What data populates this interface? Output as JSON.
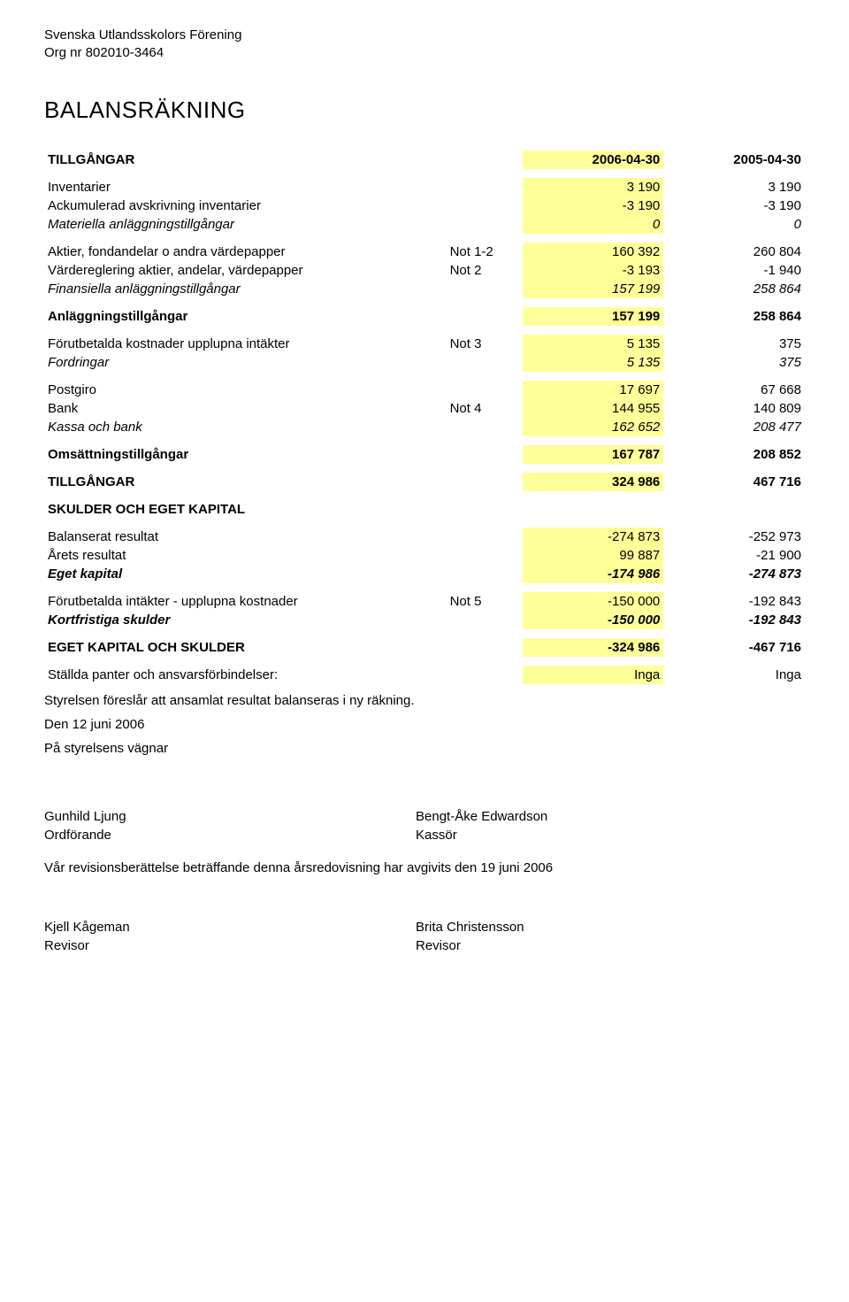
{
  "header": {
    "org_name": "Svenska Utlandsskolors Förening",
    "org_nr": "Org nr 802010-3464"
  },
  "title": "BALANSRÄKNING",
  "columns": {
    "heading_left": "TILLGÅNGAR",
    "date1": "2006-04-30",
    "date2": "2005-04-30"
  },
  "rows": [
    {
      "label": "Inventarier",
      "note": "",
      "v1": "3 190",
      "v2": "3 190"
    },
    {
      "label": "Ackumulerad avskrivning inventarier",
      "note": "",
      "v1": "-3 190",
      "v2": "-3 190"
    },
    {
      "label": "Materiella anläggningstillgångar",
      "note": "",
      "v1": "0",
      "v2": "0",
      "italic": true
    },
    {
      "gap": true
    },
    {
      "label": "Aktier, fondandelar o andra värdepapper",
      "note": "Not 1-2",
      "v1": "160 392",
      "v2": "260 804"
    },
    {
      "label": "Värdereglering aktier, andelar, värdepapper",
      "note": "Not 2",
      "v1": "-3 193",
      "v2": "-1 940"
    },
    {
      "label": "Finansiella anläggningstillgångar",
      "note": "",
      "v1": "157 199",
      "v2": "258 864",
      "italic": true
    },
    {
      "gap": true
    },
    {
      "label": "Anläggningstillgångar",
      "note": "",
      "v1": "157 199",
      "v2": "258 864",
      "bold": true
    },
    {
      "gap": true
    },
    {
      "label": "Förutbetalda kostnader upplupna intäkter",
      "note": "Not 3",
      "v1": "5 135",
      "v2": "375"
    },
    {
      "label": "Fordringar",
      "note": "",
      "v1": "5 135",
      "v2": "375",
      "italic": true
    },
    {
      "gap": true
    },
    {
      "label": "Postgiro",
      "note": "",
      "v1": "17 697",
      "v2": "67 668"
    },
    {
      "label": "Bank",
      "note": "Not 4",
      "v1": "144 955",
      "v2": "140 809"
    },
    {
      "label": "Kassa och bank",
      "note": "",
      "v1": "162 652",
      "v2": "208 477",
      "italic": true
    },
    {
      "gap": true
    },
    {
      "label": "Omsättningstillgångar",
      "note": "",
      "v1": "167 787",
      "v2": "208 852",
      "bold": true
    },
    {
      "gap": true
    },
    {
      "label": "TILLGÅNGAR",
      "note": "",
      "v1": "324 986",
      "v2": "467 716",
      "bold": true
    },
    {
      "gap": true
    },
    {
      "label": "SKULDER OCH EGET KAPITAL",
      "note": "",
      "v1": "",
      "v2": "",
      "bold": true,
      "nohighlight": true
    },
    {
      "gap": true
    },
    {
      "label": "Balanserat resultat",
      "note": "",
      "v1": "-274 873",
      "v2": "-252 973"
    },
    {
      "label": "Årets resultat",
      "note": "",
      "v1": "99 887",
      "v2": "-21 900"
    },
    {
      "label": "Eget kapital",
      "note": "",
      "v1": "-174 986",
      "v2": "-274 873",
      "bolditalic": true
    },
    {
      "gap": true
    },
    {
      "label": "Förutbetalda intäkter - upplupna kostnader",
      "note": "Not 5",
      "v1": "-150 000",
      "v2": "-192 843"
    },
    {
      "label": "Kortfristiga skulder",
      "note": "",
      "v1": "-150 000",
      "v2": "-192 843",
      "bolditalic": true
    },
    {
      "gap": true
    },
    {
      "label": "EGET KAPITAL OCH SKULDER",
      "note": "",
      "v1": "-324 986",
      "v2": "-467 716",
      "bold": true
    },
    {
      "gap": true
    },
    {
      "label": "Ställda panter och ansvarsförbindelser:",
      "note": "",
      "v1": "Inga",
      "v2": "Inga"
    }
  ],
  "footer": {
    "line1": "Styrelsen föreslår att ansamlat resultat balanseras i ny räkning.",
    "line2": "Den 12 juni 2006",
    "line3": "På styrelsens vägnar"
  },
  "signatures": {
    "name1": "Gunhild Ljung",
    "title1": "Ordförande",
    "name2": "Bengt-Åke Edwardson",
    "title2": "Kassör",
    "audit_line": "Vår revisionsberättelse beträffande denna årsredovisning har avgivits den 19 juni 2006",
    "name3": "Kjell Kågeman",
    "title3": "Revisor",
    "name4": "Brita Christensson",
    "title4": "Revisor"
  }
}
